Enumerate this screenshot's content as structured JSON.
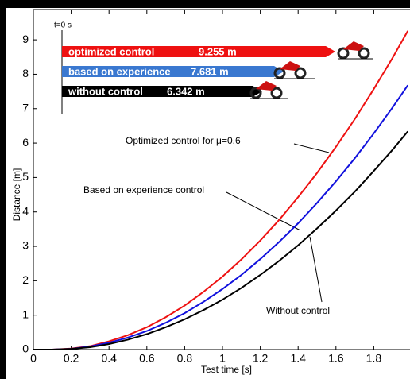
{
  "chart_data": {
    "type": "line",
    "xlabel": "Test time [s]",
    "ylabel": "Distance [m]",
    "x": [
      0,
      0.1,
      0.2,
      0.3,
      0.4,
      0.5,
      0.6,
      0.7,
      0.8,
      0.9,
      1.0,
      1.1,
      1.2,
      1.3,
      1.4,
      1.5,
      1.6,
      1.7,
      1.8,
      1.9,
      1.98
    ],
    "series": [
      {
        "name": "Optimized control for μ=0.6",
        "color": "#ee1111",
        "values": [
          0,
          0,
          0.03,
          0.1,
          0.24,
          0.42,
          0.65,
          0.94,
          1.28,
          1.68,
          2.12,
          2.62,
          3.17,
          3.77,
          4.43,
          5.13,
          5.89,
          6.7,
          7.57,
          8.48,
          9.26
        ]
      },
      {
        "name": "Based on experience control",
        "color": "#1111dd",
        "values": [
          0,
          0,
          0.02,
          0.09,
          0.2,
          0.35,
          0.54,
          0.78,
          1.06,
          1.39,
          1.76,
          2.17,
          2.63,
          3.13,
          3.67,
          4.26,
          4.89,
          5.56,
          6.28,
          7.04,
          7.68
        ]
      },
      {
        "name": "Without control",
        "color": "#000000",
        "values": [
          0,
          0,
          0.02,
          0.07,
          0.16,
          0.29,
          0.45,
          0.65,
          0.88,
          1.15,
          1.45,
          1.79,
          2.17,
          2.58,
          3.03,
          3.52,
          4.04,
          4.59,
          5.19,
          5.81,
          6.34
        ]
      }
    ],
    "xlim": [
      0,
      2
    ],
    "xticks": [
      0,
      0.2,
      0.4,
      0.6,
      0.8,
      1,
      1.2,
      1.4,
      1.6,
      1.8
    ],
    "ylim": [
      0,
      9.88
    ],
    "yticks": [
      0,
      1,
      2,
      3,
      4,
      5,
      6,
      7,
      8,
      9
    ],
    "inset": {
      "label": "t=0 s",
      "items": [
        {
          "name": "optimized control",
          "value_label": "9.255 m",
          "color": "#ee1111"
        },
        {
          "name": "based on experience",
          "value_label": "7.681 m",
          "color": "#3a78d0"
        },
        {
          "name": "without control",
          "value_label": "6.342 m",
          "color": "#000000"
        }
      ]
    }
  }
}
